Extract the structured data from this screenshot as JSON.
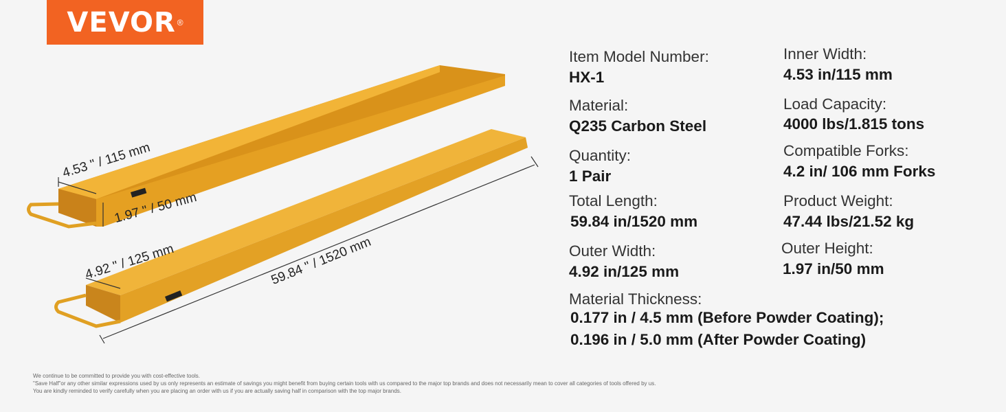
{
  "brand": {
    "logo": "VEVOR",
    "registered": "®",
    "color": "#f26322"
  },
  "product_color": "#e9a51c",
  "dimensions": {
    "inner_width": "4.53 \" / 115 mm",
    "outer_height": "1.97 \" / 50 mm",
    "outer_width": "4.92 \" / 125 mm",
    "length": "59.84 \" / 1520 mm"
  },
  "specs": {
    "model": {
      "label": "Item Model Number:",
      "value": "HX-1"
    },
    "material": {
      "label": "Material:",
      "value": "Q235 Carbon Steel"
    },
    "quantity": {
      "label": "Quantity:",
      "value": "1 Pair"
    },
    "total_length": {
      "label": "Total Length:",
      "value": "59.84 in/1520 mm"
    },
    "outer_width": {
      "label": "Outer Width:",
      "value": "4.92 in/125 mm"
    },
    "thickness": {
      "label": "Material Thickness:",
      "value1": "0.177 in / 4.5 mm (Before Powder Coating);",
      "value2": "0.196 in / 5.0 mm (After Powder Coating)"
    },
    "inner_width": {
      "label": "Inner Width:",
      "value": "4.53 in/115 mm"
    },
    "load_capacity": {
      "label": "Load Capacity:",
      "value": "4000 lbs/1.815 tons"
    },
    "compatible_forks": {
      "label": "Compatible Forks:",
      "value": "4.2 in/ 106 mm Forks"
    },
    "product_weight": {
      "label": "Product Weight:",
      "value": "47.44 lbs/21.52 kg"
    },
    "outer_height": {
      "label": "Outer Height:",
      "value": "1.97 in/50 mm"
    }
  },
  "footnotes": [
    "We continue to be committed to provide you with cost-effective tools.",
    "\"Save Half\"or any other similar expressions used by us only represents an estimate of savings you might benefit from buying certain tools with us compared to the major top brands and does not necessarily mean to cover all categories of tools offered by us.",
    "You are kindly reminded to verify carefully when you are placing an order with us if you are actually saving half in comparison with the top major brands."
  ]
}
